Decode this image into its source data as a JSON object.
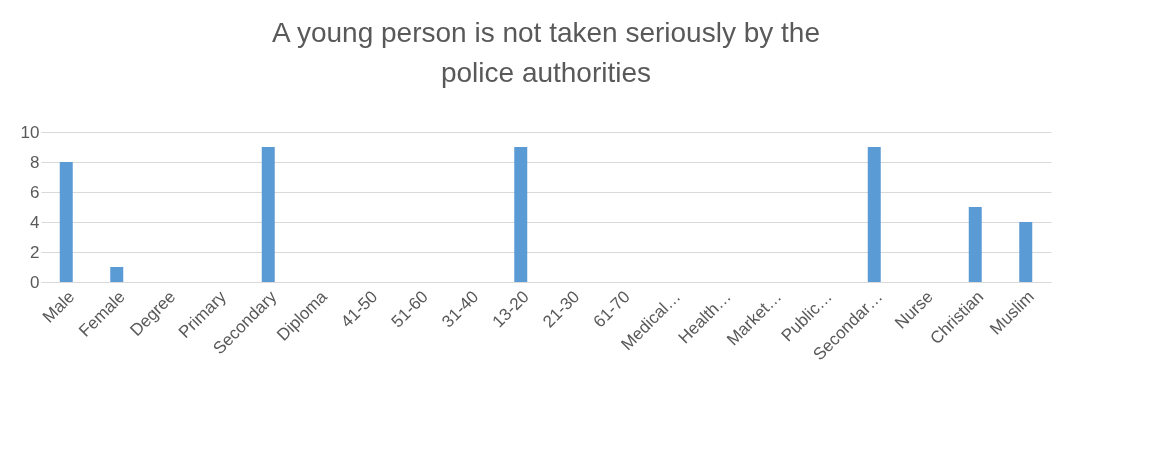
{
  "chart_data": {
    "type": "bar",
    "title": [
      "A young person is not taken seriously by the",
      "police authorities"
    ],
    "categories": [
      "Male",
      "Female",
      "Degree",
      "Primary",
      "Secondary",
      "Diploma",
      "41-50",
      "51-60",
      "31-40",
      "13-20",
      "21-30",
      "61-70",
      "Medical…",
      "Health…",
      "Market…",
      "Public…",
      "Secondar…",
      "Nurse",
      "Christian",
      "Muslim"
    ],
    "values": [
      8,
      1,
      0,
      0,
      9,
      0,
      0,
      0,
      0,
      9,
      0,
      0,
      0,
      0,
      0,
      0,
      9,
      0,
      5,
      4
    ],
    "color": "#5b9bd5",
    "ylim": [
      0,
      10
    ],
    "yticks": [
      0,
      2,
      4,
      6,
      8,
      10
    ],
    "grid": "y"
  }
}
